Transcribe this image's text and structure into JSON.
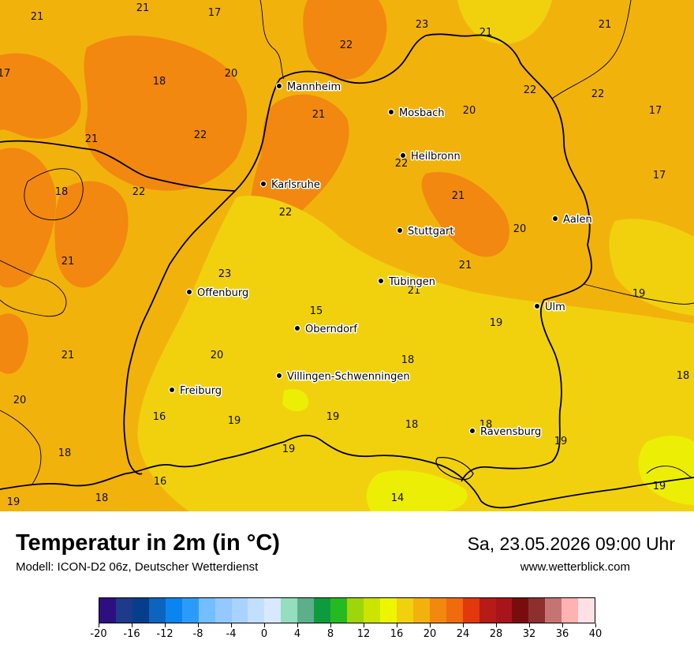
{
  "header": {
    "title": "Temperatur in 2m (in °C)",
    "model": "Modell: ICON-D2 06z, Deutscher Wetterdienst",
    "datetime": "Sa, 23.05.2026 09:00 Uhr",
    "website": "www.wetterblick.com"
  },
  "colors": {
    "map_base": "#F2B20C",
    "map_warm": "#F2880F",
    "map_cool": "#F1D10E",
    "map_yellow": "#EDEE05"
  },
  "cities": [
    {
      "name": "Mannheim"
    },
    {
      "name": "Mosbach"
    },
    {
      "name": "Heilbronn"
    },
    {
      "name": "Karlsruhe"
    },
    {
      "name": "Stuttgart"
    },
    {
      "name": "Aalen"
    },
    {
      "name": "Tübingen"
    },
    {
      "name": "Offenburg"
    },
    {
      "name": "Ulm"
    },
    {
      "name": "Oberndorf"
    },
    {
      "name": "Villingen-Schwenningen"
    },
    {
      "name": "Freiburg"
    },
    {
      "name": "Ravensburg"
    }
  ],
  "temperatures": [
    "21",
    "21",
    "17",
    "22",
    "23",
    "21",
    "21",
    "17",
    "18",
    "20",
    "21",
    "20",
    "22",
    "22",
    "17",
    "21",
    "22",
    "22",
    "17",
    "18",
    "22",
    "21",
    "22",
    "20",
    "21",
    "23",
    "21",
    "19",
    "15",
    "19",
    "21",
    "18",
    "21",
    "20",
    "18",
    "20",
    "16",
    "19",
    "19",
    "18",
    "18",
    "19",
    "18",
    "19",
    "16",
    "19",
    "14",
    "19",
    "18"
  ],
  "legend": {
    "colors": [
      "#2E0F7F",
      "#1E3A8A",
      "#073E8C",
      "#0C64BE",
      "#0A85F0",
      "#2B9BFA",
      "#72BEFF",
      "#93C9FF",
      "#A9D3FF",
      "#C2DFFF",
      "#D8E9FF",
      "#94DDBE",
      "#5DAF8C",
      "#0C9C3E",
      "#25BA21",
      "#9DD60A",
      "#CBE400",
      "#EDF600",
      "#F1D10E",
      "#F2B20C",
      "#F2880F",
      "#F06A0E",
      "#E3380C",
      "#B61B15",
      "#A7151A",
      "#790D0D",
      "#8E2F2F",
      "#C67373",
      "#FFB2B2",
      "#FFE1E5"
    ],
    "ticks": [
      "-20",
      "-16",
      "-12",
      "-8",
      "-4",
      "0",
      "4",
      "8",
      "12",
      "16",
      "20",
      "24",
      "28",
      "32",
      "36",
      "40"
    ]
  }
}
